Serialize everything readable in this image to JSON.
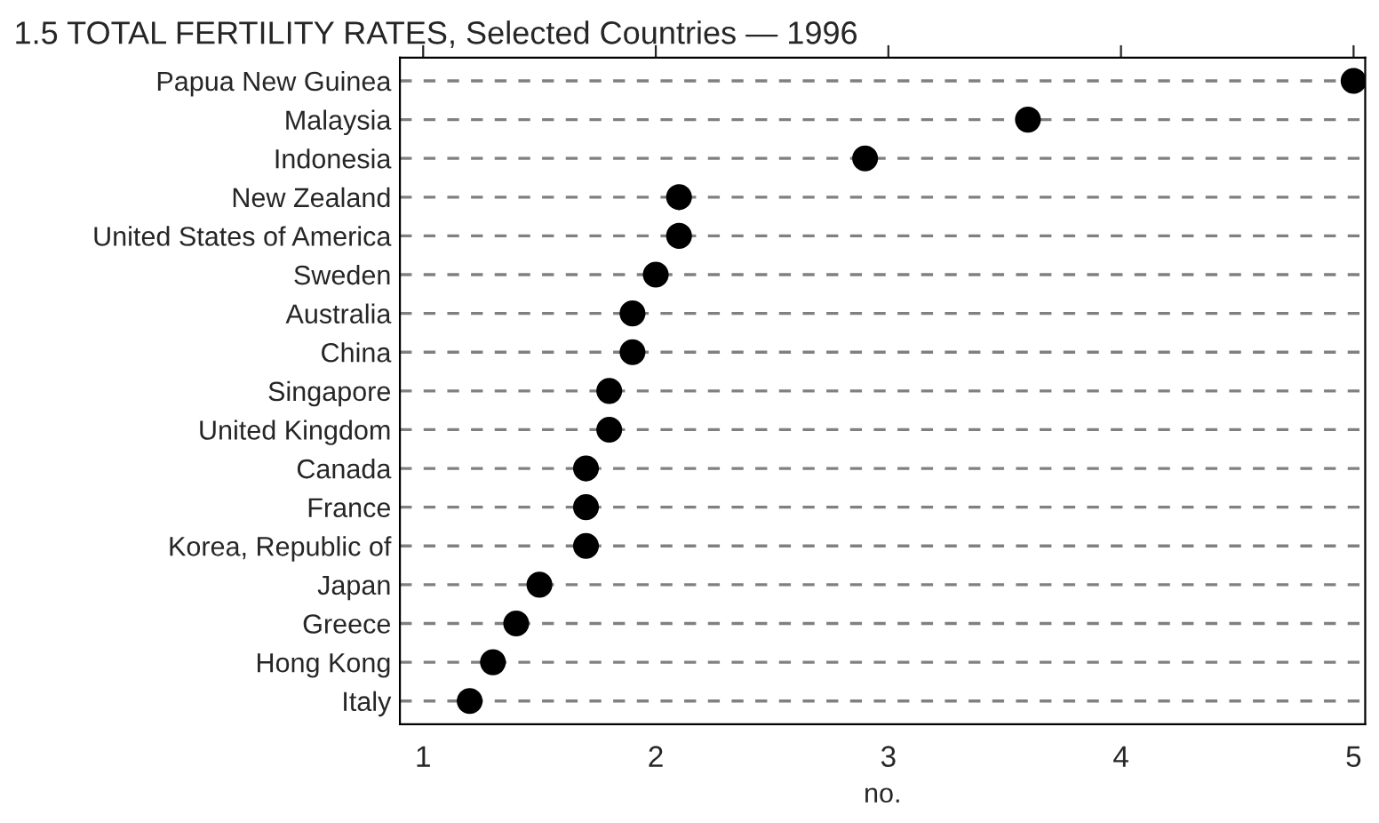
{
  "chart_data": {
    "type": "scatter",
    "orientation": "horizontal",
    "title": "1.5 TOTAL FERTILITY RATES, Selected Countries — 1996",
    "xlabel": "no.",
    "categories": [
      "Papua New Guinea",
      "Malaysia",
      "Indonesia",
      "New Zealand",
      "United States of America",
      "Sweden",
      "Australia",
      "China",
      "Singapore",
      "United Kingdom",
      "Canada",
      "France",
      "Korea, Republic of",
      "Japan",
      "Greece",
      "Hong Kong",
      "Italy"
    ],
    "values": [
      5.0,
      3.6,
      2.9,
      2.1,
      2.1,
      2.0,
      1.9,
      1.9,
      1.8,
      1.8,
      1.7,
      1.7,
      1.7,
      1.5,
      1.4,
      1.3,
      1.2
    ],
    "color": "#000000",
    "marker": "circle",
    "grid": "y",
    "line_style": "dashed",
    "xlim": [
      0.9,
      5.05
    ],
    "xticks": [
      1,
      2,
      3,
      4,
      5
    ]
  }
}
